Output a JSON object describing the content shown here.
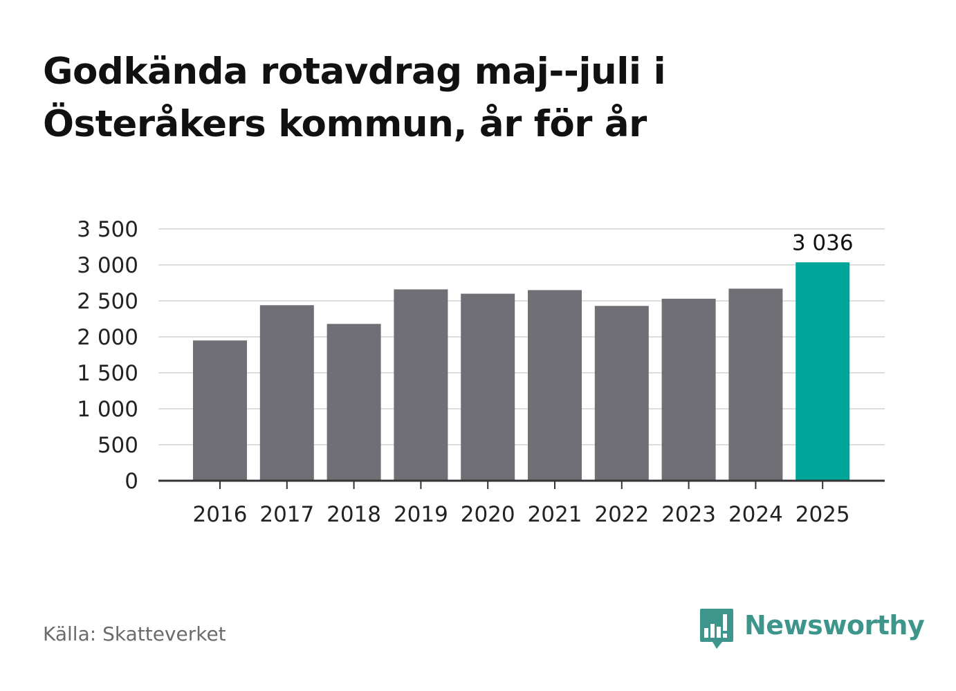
{
  "title": "Godkända rotavdrag maj--juli i Österåkers kommun, år för år",
  "source": "Källa: Skatteverket",
  "brand": {
    "name": "Newsworthy",
    "icon": "newsworthy-logo-icon",
    "color": "#3e958c"
  },
  "colors": {
    "bar": "#706f75",
    "highlight": "#00a59a",
    "grid": "#dddddd",
    "axis": "#333333"
  },
  "chart_data": {
    "type": "bar",
    "title": "Godkända rotavdrag maj--juli i Österåkers kommun, år för år",
    "xlabel": "",
    "ylabel": "",
    "categories": [
      "2016",
      "2017",
      "2018",
      "2019",
      "2020",
      "2021",
      "2022",
      "2023",
      "2024",
      "2025"
    ],
    "values": [
      1950,
      2440,
      2180,
      2660,
      2600,
      2650,
      2430,
      2530,
      2670,
      3036
    ],
    "highlight_index": 9,
    "data_labels": [
      {
        "index": 9,
        "text": "3 036"
      }
    ],
    "ylim": [
      0,
      3500
    ],
    "yticks": [
      0,
      500,
      1000,
      1500,
      2000,
      2500,
      3000,
      3500
    ],
    "ytick_labels": [
      "0",
      "500",
      "1 000",
      "1 500",
      "2 000",
      "2 500",
      "3 000",
      "3 500"
    ],
    "grid": true,
    "legend": "none"
  }
}
